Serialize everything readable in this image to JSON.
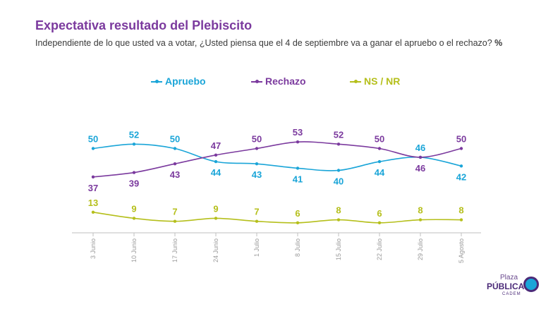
{
  "title": "Expectativa resultado del Plebiscito",
  "subtitle": "Independiente de lo que usted va a votar, ¿Usted piensa que el 4 de septiembre va a ganar el apruebo o el rechazo?",
  "subtitle_unit": "%",
  "colors": {
    "apruebo": "#1aa5d8",
    "rechazo": "#7b3a9e",
    "nsnr": "#b5bf1b",
    "axis": "#bfbfbf",
    "tick": "#9a9a9a"
  },
  "logo": {
    "line1": "Plaza",
    "line2": "PÚBLICA",
    "line3": "CADEM"
  },
  "chart_data": {
    "type": "line",
    "title": "Expectativa resultado del Plebiscito",
    "unit": "%",
    "categories": [
      "3 Junio",
      "10 Junio",
      "17 Junio",
      "24 Junio",
      "1 Julio",
      "8 Julio",
      "15 Julio",
      "22 Julio",
      "29 Julio",
      "5 Agosto"
    ],
    "series": [
      {
        "name": "Apruebo",
        "key": "apruebo",
        "values": [
          50,
          52,
          50,
          44,
          43,
          41,
          40,
          44,
          46,
          42
        ]
      },
      {
        "name": "Rechazo",
        "key": "rechazo",
        "values": [
          37,
          39,
          43,
          47,
          50,
          53,
          52,
          50,
          46,
          50
        ]
      },
      {
        "name": "NS / NR",
        "key": "nsnr",
        "values": [
          13,
          9,
          7,
          9,
          7,
          6,
          8,
          6,
          8,
          8
        ]
      }
    ],
    "legend_position": "top"
  }
}
